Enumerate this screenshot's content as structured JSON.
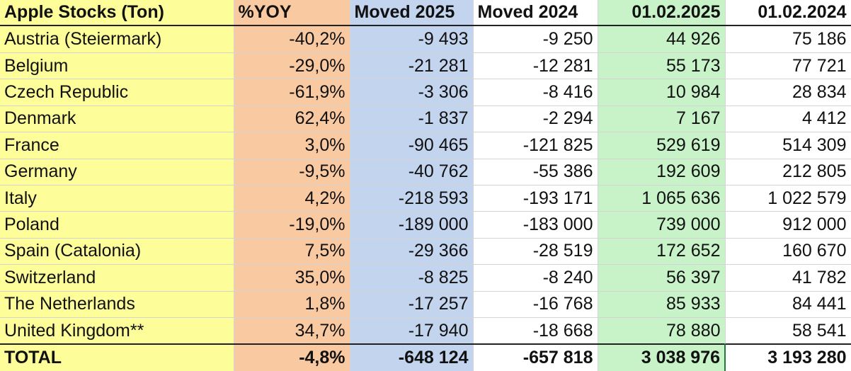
{
  "table": {
    "headers": [
      "Apple Stocks (Ton)",
      "%YOY",
      "Moved 2025",
      "Moved 2024",
      "01.02.2025",
      "01.02.2024"
    ],
    "rows": [
      [
        "Austria (Steiermark)",
        "-40,2%",
        "-9 493",
        "-9 250",
        "44 926",
        "75 186"
      ],
      [
        "Belgium",
        "-29,0%",
        "-21 281",
        "-12 281",
        "55 173",
        "77 721"
      ],
      [
        "Czech Republic",
        "-61,9%",
        "-3 306",
        "-8 416",
        "10 984",
        "28 834"
      ],
      [
        "Denmark",
        "62,4%",
        "-1 837",
        "-2 294",
        "7 167",
        "4 412"
      ],
      [
        "France",
        "3,0%",
        "-90 465",
        "-121 825",
        "529 619",
        "514 309"
      ],
      [
        "Germany",
        "-9,5%",
        "-40 762",
        "-55 386",
        "192 609",
        "212 805"
      ],
      [
        "Italy",
        "4,2%",
        "-218 593",
        "-193 171",
        "1 065 636",
        "1 022 579"
      ],
      [
        "Poland",
        "-19,0%",
        "-189 000",
        "-183 000",
        "739 000",
        "912 000"
      ],
      [
        "Spain (Catalonia)",
        "7,5%",
        "-29 366",
        "-28 519",
        "172 652",
        "160 670"
      ],
      [
        "Switzerland",
        "35,0%",
        "-8 825",
        "-8 240",
        "56 397",
        "41 782"
      ],
      [
        "The Netherlands",
        "1,8%",
        "-17 257",
        "-16 768",
        "85 933",
        "84 441"
      ],
      [
        "United Kingdom**",
        "34,7%",
        "-17 940",
        "-18 668",
        "78 880",
        "58 541"
      ]
    ],
    "total": [
      "TOTAL",
      "-4,8%",
      "-648 124",
      "-657 818",
      "3 038 976",
      "3 193 280"
    ]
  },
  "colors": {
    "country_column": "#fdfd9a",
    "yoy_column": "#f9c9a1",
    "moved_2025_column": "#c3d4ee",
    "stock_2025_column": "#c8f3c8",
    "selected_cell_border": "#1f7a3a"
  }
}
